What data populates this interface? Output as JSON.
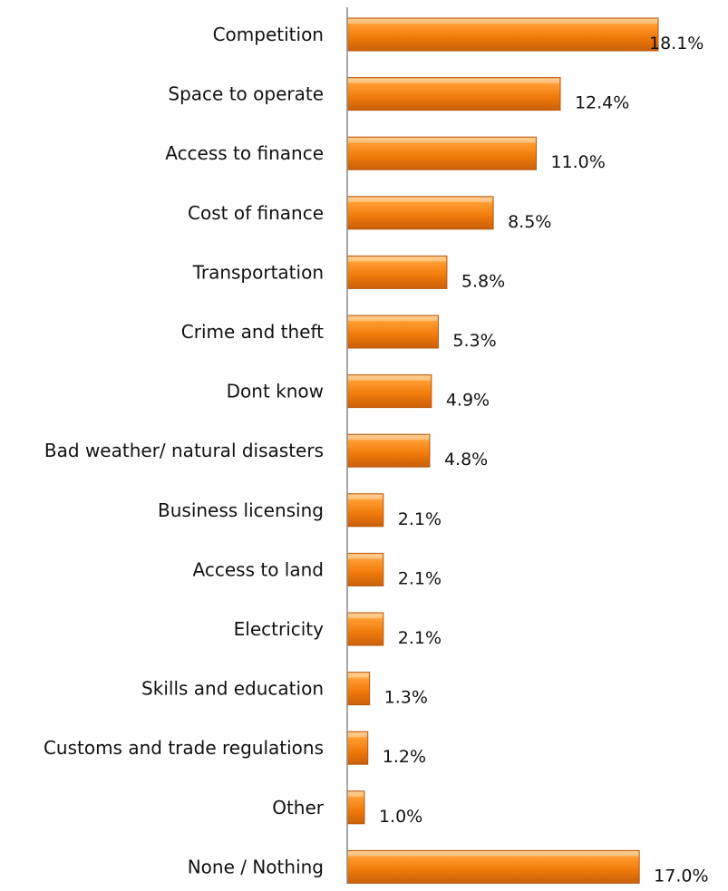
{
  "chart_data": {
    "type": "bar",
    "orientation": "horizontal",
    "categories": [
      "Competition",
      "Space to operate",
      "Access to finance",
      "Cost of finance",
      "Transportation",
      "Crime and theft",
      "Dont know",
      "Bad weather/ natural disasters",
      "Business licensing",
      "Access to land",
      "Electricity",
      "Skills and education",
      "Customs and trade regulations",
      "Other",
      "None / Nothing"
    ],
    "values": [
      18.1,
      12.4,
      11.0,
      8.5,
      5.8,
      5.3,
      4.9,
      4.8,
      2.1,
      2.1,
      2.1,
      1.3,
      1.2,
      1.0,
      17.0
    ],
    "value_labels": [
      "18.1%",
      "12.4%",
      "11.0%",
      "8.5%",
      "5.8%",
      "5.3%",
      "4.9%",
      "4.8%",
      "2.1%",
      "2.1%",
      "2.1%",
      "1.3%",
      "1.2%",
      "1.0%",
      "17.0%"
    ],
    "unit": "%",
    "xlim": [
      0,
      20
    ],
    "grid": false,
    "legend": "none",
    "bar_color": "#F07A0A",
    "bar_color_light": "#FFB866",
    "bar_color_dark": "#B8560A"
  }
}
